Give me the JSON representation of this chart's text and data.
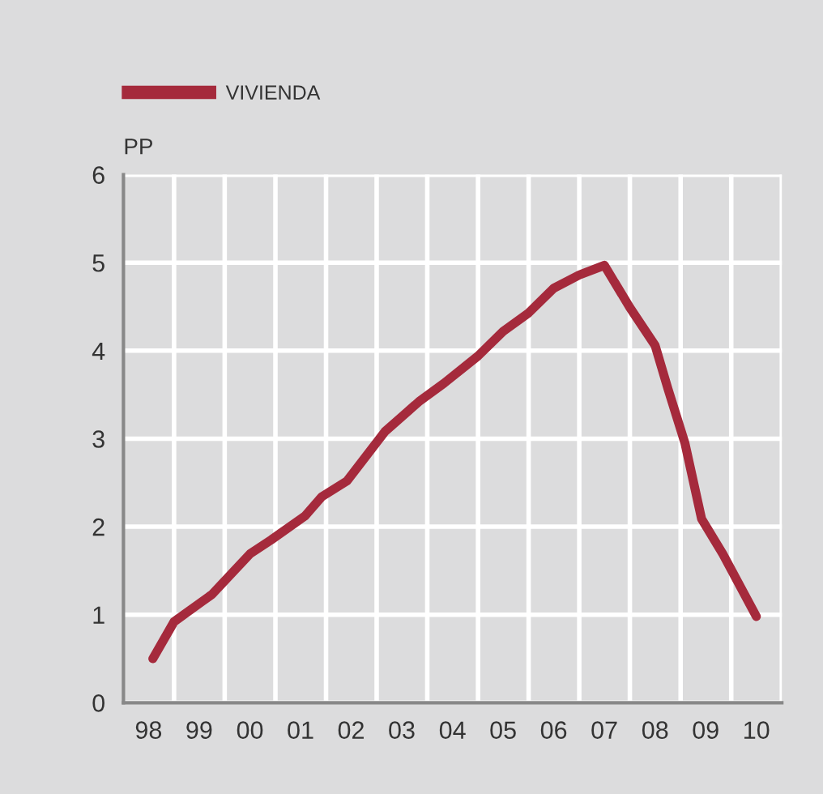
{
  "chart_data": {
    "type": "line",
    "ylabel": "PP",
    "legend": "top left",
    "grid": true,
    "line_style": "solid",
    "marker": "none",
    "xlim": [
      "1998",
      "2011"
    ],
    "ylim": [
      0,
      6
    ],
    "yticks": [
      0,
      1,
      2,
      3,
      4,
      5,
      6
    ],
    "xticks": [
      {
        "value": "1998-07",
        "label": "98"
      },
      {
        "value": "1999",
        "label": null
      },
      {
        "value": "1999-07",
        "label": "99"
      },
      {
        "value": "2000",
        "label": null
      },
      {
        "value": "2000-07",
        "label": "00"
      },
      {
        "value": "2001",
        "label": null
      },
      {
        "value": "2001-07",
        "label": "01"
      },
      {
        "value": "2002",
        "label": null
      },
      {
        "value": "2002-07",
        "label": "02"
      },
      {
        "value": "2003",
        "label": null
      },
      {
        "value": "2003-07",
        "label": "03"
      },
      {
        "value": "2004",
        "label": null
      },
      {
        "value": "2004-07",
        "label": "04"
      },
      {
        "value": "2005",
        "label": null
      },
      {
        "value": "2005-07",
        "label": "05"
      },
      {
        "value": "2006",
        "label": null
      },
      {
        "value": "2006-07",
        "label": "06"
      },
      {
        "value": "2007",
        "label": null
      },
      {
        "value": "2007-07",
        "label": "07"
      },
      {
        "value": "2008",
        "label": null
      },
      {
        "value": "2008-07",
        "label": "08"
      },
      {
        "value": "2009",
        "label": null
      },
      {
        "value": "2009-07",
        "label": "09"
      },
      {
        "value": "2010",
        "label": null
      },
      {
        "value": "2010-07",
        "label": "10"
      },
      {
        "value": "2011",
        "label": null
      }
    ],
    "x": [
      "1998-08",
      "1999-01",
      "1999-10",
      "2000-07",
      "2000-12",
      "2001-08",
      "2001-12",
      "2002-06",
      "2003-03",
      "2003-11",
      "2004-05",
      "2005-01",
      "2005-07",
      "2006-01",
      "2006-07",
      "2007-01",
      "2007-07",
      "2008-01",
      "2008-07",
      "2008-10",
      "2009-02",
      "2009-06",
      "2009-11",
      "2010-07"
    ],
    "series": [
      {
        "name": "VIVIENDA",
        "color": "#a52a3c",
        "values": [
          0.5,
          0.92,
          1.23,
          1.69,
          1.85,
          2.12,
          2.34,
          2.52,
          3.08,
          3.42,
          3.63,
          3.94,
          4.22,
          4.43,
          4.71,
          4.86,
          4.97,
          4.49,
          4.06,
          3.57,
          2.95,
          2.09,
          1.69,
          0.98
        ]
      }
    ]
  }
}
